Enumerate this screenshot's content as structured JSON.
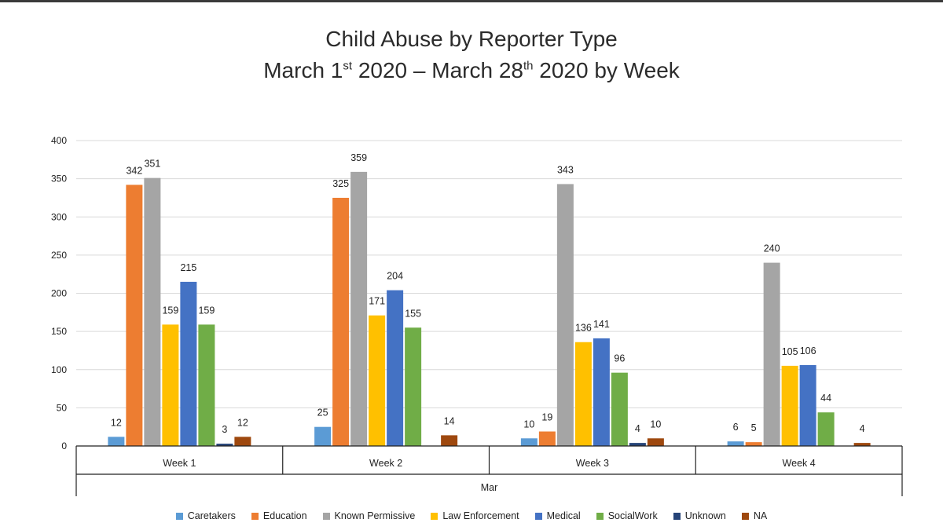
{
  "title": {
    "line1": "Child Abuse by Reporter Type",
    "line2_a": "March 1",
    "line2_sup1": "st",
    "line2_b": " 2020 – March 28",
    "line2_sup2": "th",
    "line2_c": " 2020 by Week"
  },
  "chart_data": {
    "type": "bar",
    "title": "Child Abuse by Reporter Type March 1st 2020 – March 28th 2020 by Week",
    "xlabel": "Mar",
    "ylabel": "",
    "ylim": [
      0,
      400
    ],
    "yticks": [
      0,
      50,
      100,
      150,
      200,
      250,
      300,
      350,
      400
    ],
    "grid": true,
    "legend_position": "bottom",
    "categories": [
      "Week 1",
      "Week 2",
      "Week 3",
      "Week 4"
    ],
    "series": [
      {
        "name": "Caretakers",
        "color": "#5b9bd5",
        "values": [
          12,
          25,
          10,
          6
        ]
      },
      {
        "name": "Education",
        "color": "#ed7d31",
        "values": [
          342,
          325,
          19,
          5
        ]
      },
      {
        "name": "Known Permissive",
        "color": "#a5a5a5",
        "values": [
          351,
          359,
          343,
          240
        ]
      },
      {
        "name": "Law Enforcement",
        "color": "#ffc000",
        "values": [
          159,
          171,
          136,
          105
        ]
      },
      {
        "name": "Medical",
        "color": "#4472c4",
        "values": [
          215,
          204,
          141,
          106
        ]
      },
      {
        "name": "SocialWork",
        "color": "#70ad47",
        "values": [
          159,
          155,
          96,
          44
        ]
      },
      {
        "name": "Unknown",
        "color": "#264478",
        "values": [
          3,
          null,
          4,
          null
        ]
      },
      {
        "name": "NA",
        "color": "#9e480e",
        "values": [
          12,
          14,
          10,
          4
        ]
      }
    ]
  }
}
